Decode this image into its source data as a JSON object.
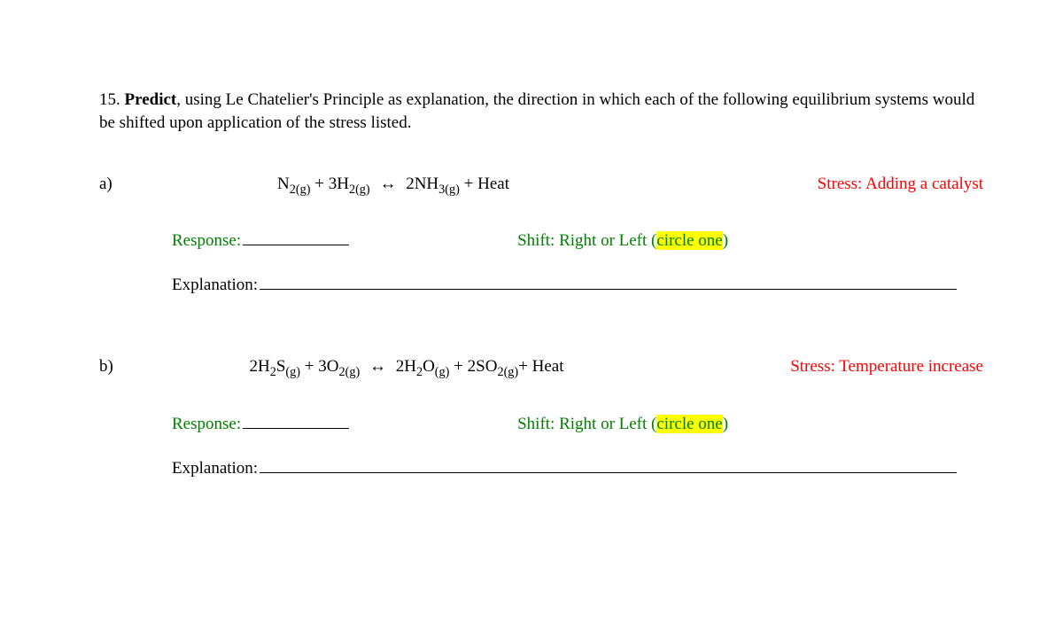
{
  "question_number": "15.",
  "prompt_bold": "Predict",
  "prompt_rest": ", using Le Chatelier's Principle as explanation, the direction in which each of the following equilibrium systems would be shifted upon application of the stress listed.",
  "parts": {
    "a": {
      "label": "a)",
      "eq": {
        "t1": "N",
        "s1": "2(g)",
        "plus1": " + 3H",
        "s2": "2(g)",
        "arrow": "↔",
        "t2": "  2NH",
        "s3": "3(g)",
        "tail": " + Heat"
      },
      "stress": "Stress:  Adding a catalyst",
      "response_label": "Response:",
      "shift_prefix": "Shift:  Right or Left (",
      "shift_hl": "circle one",
      "shift_suffix": ")",
      "explanation_label": "Explanation:"
    },
    "b": {
      "label": "b)",
      "eq": {
        "t1": "2H",
        "s1a": "2",
        "t1b": "S",
        "s1b": "(g)",
        "plus1": " + 3O",
        "s2": "2(g)",
        "arrow": "↔",
        "t2": "  2H",
        "s3a": "2",
        "t2b": "O",
        "s3b": "(g)",
        "plus2": "  +  2SO",
        "s4": "2(g)",
        "tail": "+ Heat"
      },
      "stress": "Stress:  Temperature increase",
      "response_label": "Response:",
      "shift_prefix": "Shift:  Right or Left (",
      "shift_hl": "circle one",
      "shift_suffix": ")",
      "explanation_label": "Explanation:"
    }
  },
  "colors": {
    "stress": "#ff0000",
    "green": "#008000",
    "highlight": "#ffff00",
    "text": "#000000",
    "bg": "#ffffff"
  }
}
